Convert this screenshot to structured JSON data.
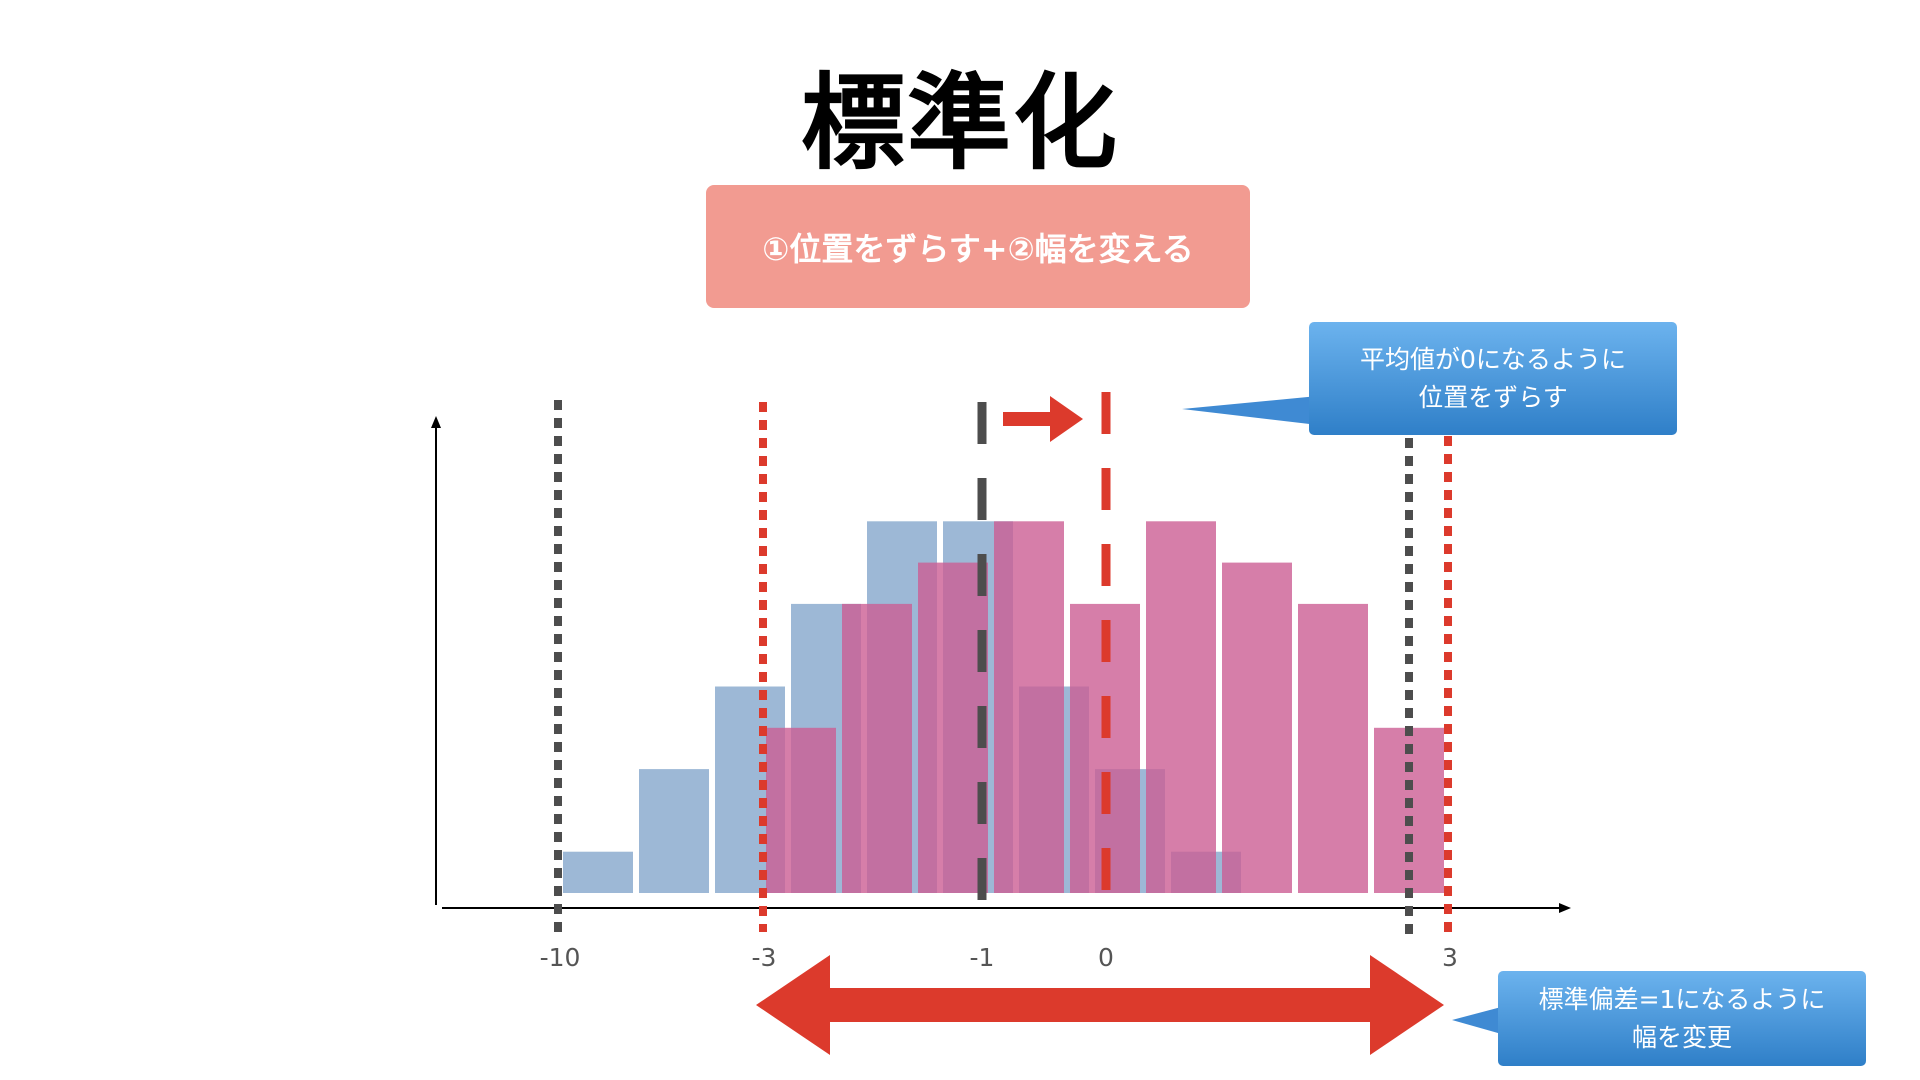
{
  "title": "標準化",
  "banner": {
    "text": "①位置をずらす+②幅を変える"
  },
  "callout_mean": {
    "line1": "平均値が0になるように",
    "line2": "位置をずらす"
  },
  "callout_std": {
    "line1": "標準偏差=1になるように",
    "line2": "幅を変更"
  },
  "axis": {
    "ticks": [
      "-10",
      "-3",
      "-1",
      "0",
      "3"
    ]
  },
  "colors": {
    "original_bars": "#9db8d6",
    "standardized_bars": "#cc5e93",
    "original_lines": "#4d4d4d",
    "standardized_lines": "#dc3a2c",
    "banner": "#f29b91",
    "callout": "#3f8ad3"
  },
  "chart_data": {
    "type": "bar",
    "series": [
      {
        "name": "",
        "values": [
          1,
          3,
          5,
          7,
          9,
          9,
          5,
          3,
          1
        ]
      },
      {
        "name": "",
        "values": [
          4,
          7,
          8,
          9,
          7,
          9,
          8,
          7,
          4
        ]
      }
    ],
    "ylim": [
      0,
      10
    ]
  }
}
